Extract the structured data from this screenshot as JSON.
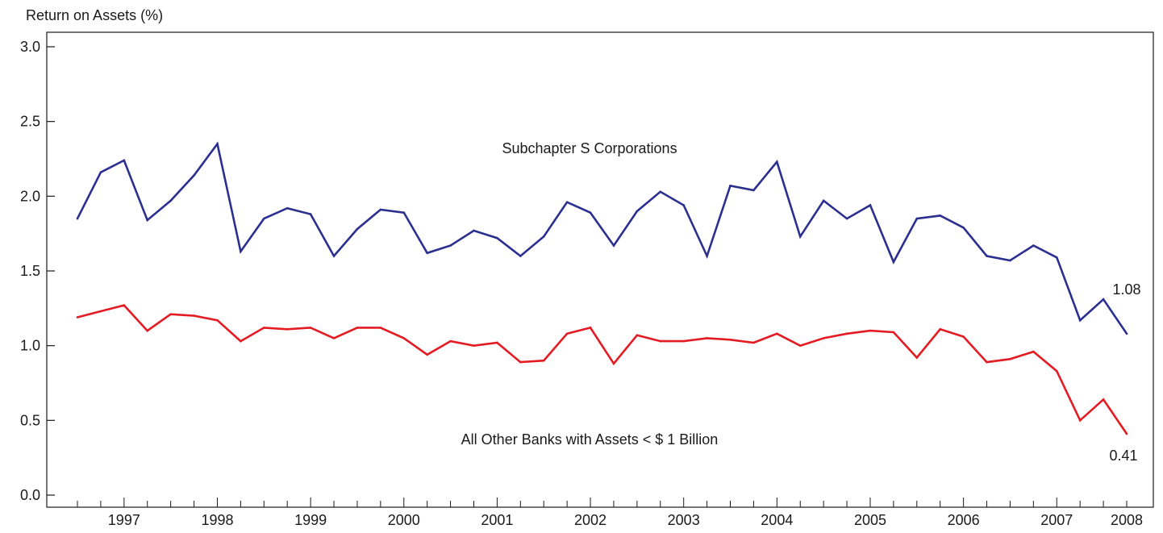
{
  "chart_data": {
    "type": "line",
    "ylabel": "Return on Assets (%)",
    "ylim": [
      0.0,
      3.0
    ],
    "yticks": [
      "0.0",
      "0.5",
      "1.0",
      "1.5",
      "2.0",
      "2.5",
      "3.0"
    ],
    "grid": false,
    "year_labels": [
      "1997",
      "1998",
      "1999",
      "2000",
      "2001",
      "2002",
      "2003",
      "2004",
      "2005",
      "2006",
      "2007",
      "2008"
    ],
    "series": [
      {
        "name": "Subchapter S Corporations",
        "color": "#2b2f8f",
        "values": [
          1.85,
          2.16,
          2.24,
          1.84,
          1.97,
          2.14,
          2.35,
          1.63,
          1.85,
          1.92,
          1.88,
          1.6,
          1.78,
          1.91,
          1.89,
          1.62,
          1.67,
          1.77,
          1.72,
          1.6,
          1.73,
          1.96,
          1.89,
          1.67,
          1.9,
          2.03,
          1.94,
          1.6,
          2.07,
          2.04,
          2.23,
          1.73,
          1.97,
          1.85,
          1.94,
          1.56,
          1.85,
          1.87,
          1.79,
          1.6,
          1.57,
          1.67,
          1.59,
          1.17,
          1.31,
          1.08
        ],
        "end_label": "1.08"
      },
      {
        "name": "All Other Banks with Assets < $ 1 Billion",
        "color": "#e31b23",
        "values": [
          1.19,
          1.23,
          1.27,
          1.1,
          1.21,
          1.2,
          1.17,
          1.03,
          1.12,
          1.11,
          1.12,
          1.05,
          1.12,
          1.12,
          1.05,
          0.94,
          1.03,
          1.0,
          1.02,
          0.89,
          0.9,
          1.08,
          1.12,
          0.88,
          1.07,
          1.03,
          1.03,
          1.05,
          1.04,
          1.02,
          1.08,
          1.0,
          1.05,
          1.08,
          1.1,
          1.09,
          0.92,
          1.11,
          1.06,
          0.89,
          0.91,
          0.96,
          0.83,
          0.5,
          0.64,
          0.41
        ],
        "end_label": "0.41"
      }
    ]
  }
}
